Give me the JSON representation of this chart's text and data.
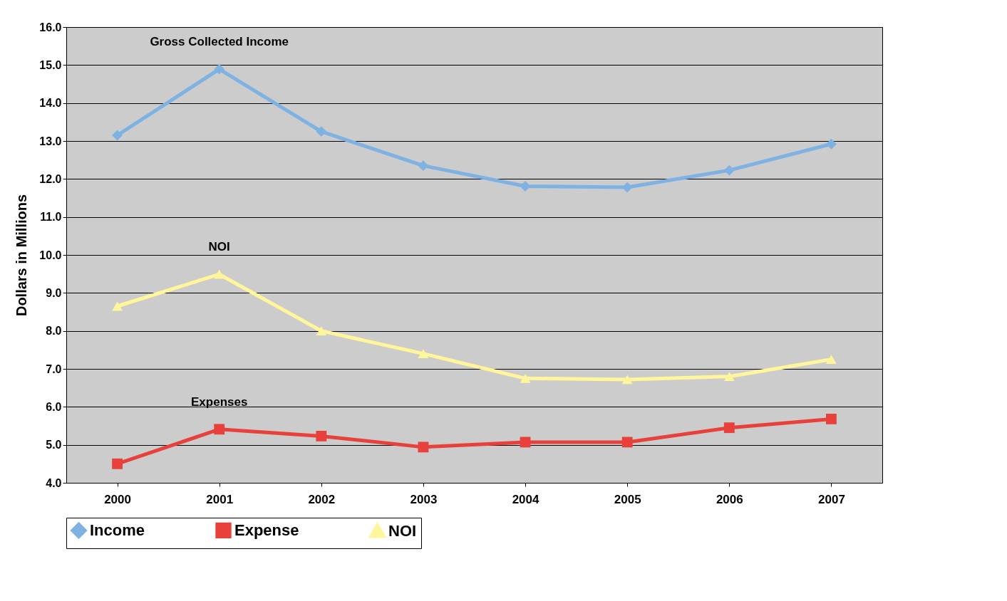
{
  "chart_data": {
    "type": "line",
    "ylabel": "Dollars in Millions",
    "categories": [
      "2000",
      "2001",
      "2002",
      "2003",
      "2004",
      "2005",
      "2006",
      "2007"
    ],
    "series": [
      {
        "name": "Income",
        "color": "#7eb2e3",
        "marker": "diamond",
        "values": [
          13.15,
          14.89,
          13.25,
          12.35,
          11.81,
          11.78,
          12.23,
          12.92
        ]
      },
      {
        "name": "Expense",
        "color": "#e8413c",
        "marker": "square",
        "values": [
          4.5,
          5.41,
          5.23,
          4.94,
          5.07,
          5.07,
          5.45,
          5.68
        ]
      },
      {
        "name": "NOI",
        "color": "#fff59a",
        "marker": "triangle",
        "values": [
          8.65,
          9.49,
          8.0,
          7.4,
          6.75,
          6.72,
          6.8,
          7.25
        ]
      }
    ],
    "ylim": [
      4,
      16
    ],
    "yticks": [
      {
        "value": 4,
        "label": "4.0"
      },
      {
        "value": 5,
        "label": "5.0"
      },
      {
        "value": 6,
        "label": "6.0"
      },
      {
        "value": 7,
        "label": "7.0"
      },
      {
        "value": 8,
        "label": "8.0"
      },
      {
        "value": 9,
        "label": "9.0"
      },
      {
        "value": 10,
        "label": "10.0"
      },
      {
        "value": 11,
        "label": "11.0"
      },
      {
        "value": 12,
        "label": "12.0"
      },
      {
        "value": 13,
        "label": "13.0"
      },
      {
        "value": 14,
        "label": "14.0"
      },
      {
        "value": 15,
        "label": "15.0"
      },
      {
        "value": 16,
        "label": "16.0"
      }
    ],
    "grid": "y",
    "legend": "bottom",
    "line_style": "solid",
    "annotations": [
      "Gross Collected Income",
      "Expenses",
      "NOI"
    ]
  }
}
